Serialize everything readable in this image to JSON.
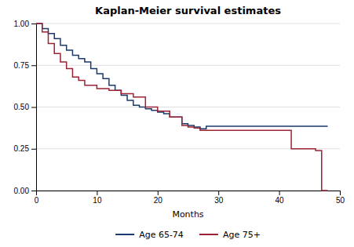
{
  "chart_data": {
    "type": "line",
    "title": "Kaplan-Meier survival estimates",
    "xlabel": "Months",
    "xlim": [
      0,
      50
    ],
    "ylim": [
      0,
      1.0
    ],
    "xticks": [
      0,
      10,
      20,
      30,
      40,
      50
    ],
    "yticks": [
      {
        "value": 0.0,
        "label": "0.00"
      },
      {
        "value": 0.25,
        "label": "0.25"
      },
      {
        "value": 0.5,
        "label": "0.50"
      },
      {
        "value": 0.75,
        "label": "0.75"
      },
      {
        "value": 1.0,
        "label": "1.00"
      }
    ],
    "grid": true,
    "legend": "bottom",
    "series": [
      {
        "name": "Age 65-74",
        "color": "#1a3a6b",
        "x": [
          0,
          1,
          1,
          2,
          2,
          3,
          3,
          4,
          4,
          5,
          5,
          6,
          6,
          7,
          7,
          8,
          8,
          9,
          9,
          10,
          10,
          11,
          11,
          12,
          12,
          13,
          13,
          14,
          14,
          15,
          15,
          16,
          16,
          17,
          17,
          18,
          18,
          19,
          19,
          20,
          20,
          21,
          21,
          22,
          22,
          24,
          24,
          25,
          25,
          26,
          26,
          27,
          27,
          28,
          28,
          42,
          42,
          48,
          48
        ],
        "values": [
          1.0,
          1.0,
          0.97,
          0.97,
          0.94,
          0.94,
          0.91,
          0.91,
          0.87,
          0.87,
          0.84,
          0.84,
          0.81,
          0.81,
          0.79,
          0.79,
          0.77,
          0.77,
          0.73,
          0.73,
          0.7,
          0.7,
          0.67,
          0.67,
          0.63,
          0.63,
          0.6,
          0.6,
          0.57,
          0.57,
          0.54,
          0.54,
          0.51,
          0.51,
          0.5,
          0.5,
          0.49,
          0.49,
          0.48,
          0.48,
          0.47,
          0.47,
          0.46,
          0.46,
          0.44,
          0.44,
          0.4,
          0.4,
          0.39,
          0.39,
          0.38,
          0.38,
          0.37,
          0.37,
          0.385,
          0.385,
          0.385,
          0.385,
          0.385
        ]
      },
      {
        "name": "Age 75+",
        "color": "#9b2335",
        "x": [
          0,
          1,
          1,
          2,
          2,
          3,
          3,
          4,
          4,
          5,
          5,
          6,
          6,
          7,
          7,
          8,
          8,
          10,
          10,
          12,
          12,
          14,
          14,
          16,
          16,
          18,
          18,
          20,
          20,
          22,
          22,
          24,
          24,
          25,
          25,
          26,
          26,
          27,
          27,
          28,
          28,
          42,
          42,
          46,
          46,
          47,
          47,
          48
        ],
        "values": [
          1.0,
          1.0,
          0.95,
          0.95,
          0.88,
          0.88,
          0.82,
          0.82,
          0.77,
          0.77,
          0.73,
          0.73,
          0.68,
          0.68,
          0.66,
          0.66,
          0.63,
          0.63,
          0.61,
          0.61,
          0.6,
          0.6,
          0.58,
          0.58,
          0.56,
          0.56,
          0.5,
          0.5,
          0.475,
          0.475,
          0.44,
          0.44,
          0.39,
          0.39,
          0.38,
          0.38,
          0.375,
          0.375,
          0.36,
          0.36,
          0.36,
          0.36,
          0.25,
          0.25,
          0.24,
          0.24,
          0.0,
          0.0
        ]
      }
    ]
  }
}
